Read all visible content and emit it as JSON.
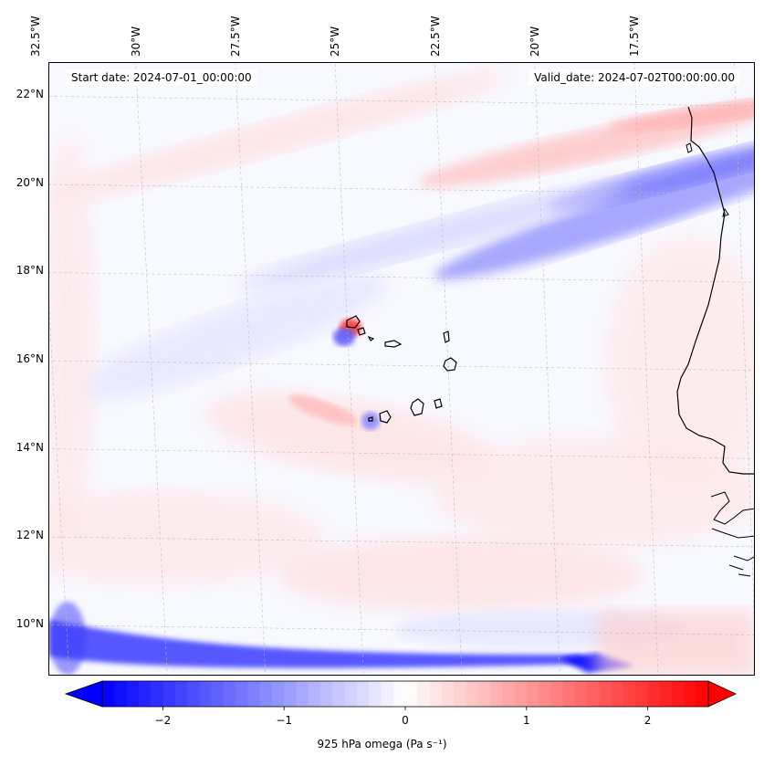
{
  "map": {
    "start_date": "Start date: 2024-07-01_00:00:00",
    "valid_date": "Valid_date: 2024-07-02T00:00:00.00",
    "lon_labels": [
      "32.5°W",
      "30°W",
      "27.5°W",
      "25°W",
      "22.5°W",
      "20°W",
      "17.5°W"
    ],
    "lat_labels": [
      "22°N",
      "20°N",
      "18°N",
      "16°N",
      "14°N",
      "12°N",
      "10°N"
    ],
    "lon_values": [
      -32.5,
      -30,
      -27.5,
      -25,
      -22.5,
      -20,
      -17.5
    ],
    "lat_values": [
      22,
      20,
      18,
      16,
      14,
      12,
      10
    ],
    "lon_range": [
      -32.6,
      -15.4
    ],
    "lat_range": [
      8.9,
      22.8
    ],
    "field_variable": "925 hPa omega",
    "colormap": "bwr",
    "colors": {
      "negative": "#0000ff",
      "zero": "#ffffff",
      "positive": "#ff0000",
      "coastline": "#000000",
      "gridline": "#bbbbbb"
    }
  },
  "colorbar": {
    "ticks": [
      "−2",
      "−1",
      "0",
      "1",
      "2"
    ],
    "tick_values": [
      -2,
      -1,
      0,
      1,
      2
    ],
    "range": [
      -2.5,
      2.5
    ],
    "extend": "both",
    "label": "925 hPa omega (Pa s⁻¹)"
  }
}
